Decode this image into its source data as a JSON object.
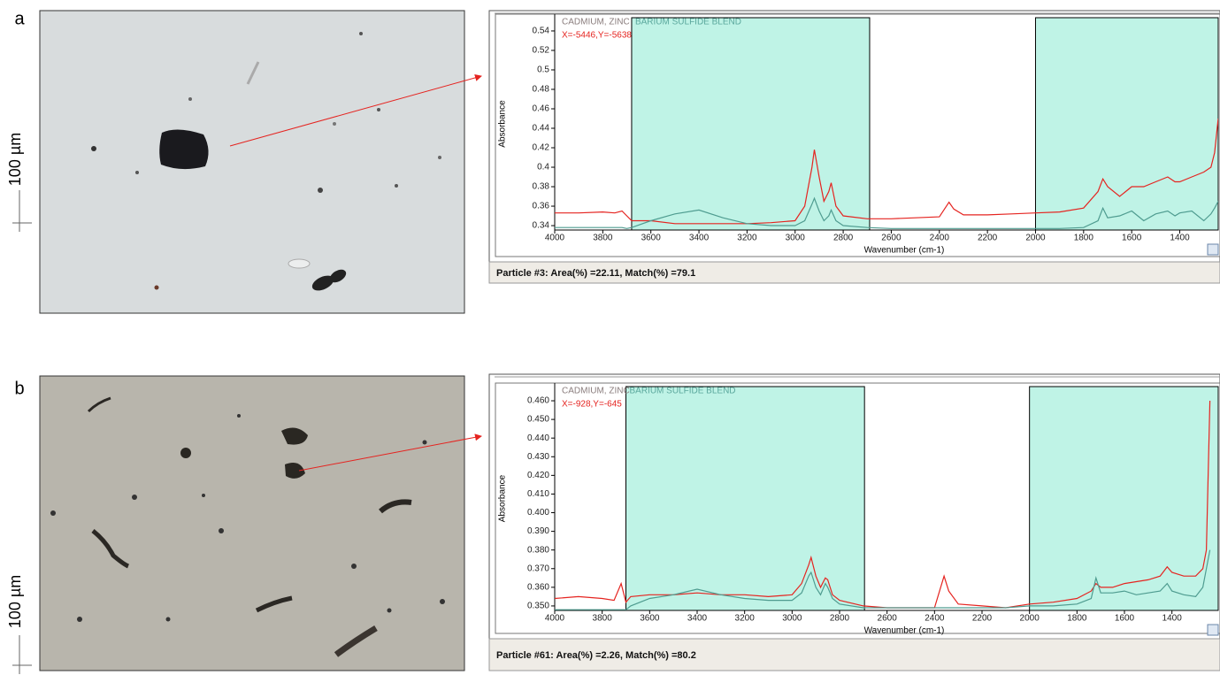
{
  "chart_data": [
    {
      "type": "line",
      "panel_label": "a",
      "scale_label": "100 µm",
      "library_match": [
        "CADMIUM, ZINC",
        "BARIUM SULFIDE BLEND"
      ],
      "annotation": "X=-5446,Y=-5638",
      "y_label": "Absorbance",
      "x_label": "Wavenumber (cm-1)",
      "footer": "Particle #3: Area(%) =22.11, Match(%) =79.1",
      "xlim": [
        4000,
        1240
      ],
      "ylim": [
        0.3355,
        0.5536
      ],
      "xticks": [
        4000,
        3800,
        3600,
        3400,
        3200,
        3000,
        2800,
        2600,
        2400,
        2200,
        2000,
        1800,
        1600,
        1400
      ],
      "yticks": [
        0.34,
        0.36,
        0.38,
        0.4,
        0.42,
        0.44,
        0.46,
        0.48,
        0.5,
        0.52,
        0.54
      ],
      "shaded_regions": [
        [
          3680,
          2690
        ],
        [
          2000,
          1240
        ]
      ],
      "shade_color": "#bff3e6",
      "x": [
        4000,
        3900,
        3800,
        3750,
        3720,
        3700,
        3680,
        3600,
        3500,
        3400,
        3300,
        3200,
        3100,
        3000,
        2960,
        2930,
        2920,
        2900,
        2880,
        2860,
        2850,
        2830,
        2800,
        2700,
        2600,
        2500,
        2400,
        2360,
        2340,
        2300,
        2200,
        2100,
        2000,
        1900,
        1800,
        1740,
        1720,
        1700,
        1650,
        1600,
        1550,
        1500,
        1450,
        1420,
        1400,
        1350,
        1300,
        1270,
        1255,
        1240
      ],
      "series": [
        {
          "color": "#e52420",
          "values": [
            0.353,
            0.353,
            0.354,
            0.353,
            0.355,
            0.35,
            0.345,
            0.345,
            0.342,
            0.342,
            0.342,
            0.342,
            0.343,
            0.345,
            0.36,
            0.4,
            0.418,
            0.39,
            0.365,
            0.375,
            0.384,
            0.36,
            0.35,
            0.347,
            0.347,
            0.348,
            0.349,
            0.364,
            0.357,
            0.351,
            0.351,
            0.352,
            0.353,
            0.354,
            0.358,
            0.375,
            0.388,
            0.38,
            0.37,
            0.38,
            0.38,
            0.385,
            0.39,
            0.385,
            0.385,
            0.39,
            0.395,
            0.4,
            0.415,
            0.45
          ]
        },
        {
          "color": "#4f9c90",
          "values": [
            0.338,
            0.338,
            0.338,
            0.338,
            0.338,
            0.337,
            0.338,
            0.345,
            0.352,
            0.356,
            0.348,
            0.342,
            0.34,
            0.34,
            0.345,
            0.362,
            0.368,
            0.355,
            0.345,
            0.35,
            0.356,
            0.345,
            0.34,
            0.338,
            0.337,
            0.337,
            0.337,
            0.337,
            0.337,
            0.337,
            0.337,
            0.337,
            0.337,
            0.337,
            0.338,
            0.345,
            0.358,
            0.348,
            0.35,
            0.355,
            0.345,
            0.352,
            0.355,
            0.35,
            0.353,
            0.355,
            0.345,
            0.352,
            0.358,
            0.365
          ]
        }
      ]
    },
    {
      "type": "line",
      "panel_label": "b",
      "scale_label": "100 µm",
      "library_match": [
        "CADMIUM, ZINC",
        "BARIUM SULFIDE BLEND"
      ],
      "annotation": "X=-928,Y=-645",
      "y_label": "Absorbance",
      "x_label": "Wavenumber (cm-1)",
      "footer": "Particle #61: Area(%) =2.26, Match(%) =80.2",
      "xlim": [
        4000,
        1205
      ],
      "ylim": [
        0.3476,
        0.4676
      ],
      "xticks": [
        4000,
        3800,
        3600,
        3400,
        3200,
        3000,
        2800,
        2600,
        2400,
        2200,
        2000,
        1800,
        1600,
        1400
      ],
      "yticks": [
        {
          "value": 0.35,
          "label": "0.350"
        },
        {
          "value": 0.36,
          "label": "0.360"
        },
        {
          "value": 0.37,
          "label": "0.370"
        },
        {
          "value": 0.38,
          "label": "0.380"
        },
        {
          "value": 0.39,
          "label": "0.390"
        },
        {
          "value": 0.4,
          "label": "0.400"
        },
        {
          "value": 0.41,
          "label": "0.410"
        },
        {
          "value": 0.42,
          "label": "0.420"
        },
        {
          "value": 0.43,
          "label": "0.430"
        },
        {
          "value": 0.44,
          "label": "0.440"
        },
        {
          "value": 0.45,
          "label": "0.450"
        },
        {
          "value": 0.46,
          "label": "0.460"
        }
      ],
      "shaded_regions": [
        [
          3700,
          2695
        ],
        [
          2000,
          1205
        ]
      ],
      "shade_color": "#bff3e6",
      "x": [
        4000,
        3900,
        3800,
        3750,
        3720,
        3700,
        3680,
        3600,
        3500,
        3400,
        3300,
        3200,
        3100,
        3000,
        2960,
        2930,
        2920,
        2900,
        2880,
        2860,
        2850,
        2830,
        2800,
        2700,
        2600,
        2500,
        2400,
        2360,
        2340,
        2300,
        2200,
        2100,
        2000,
        1900,
        1800,
        1740,
        1720,
        1700,
        1650,
        1600,
        1550,
        1500,
        1450,
        1420,
        1400,
        1350,
        1300,
        1270,
        1255,
        1240
      ],
      "series": [
        {
          "color": "#e52420",
          "values": [
            0.354,
            0.355,
            0.354,
            0.353,
            0.362,
            0.352,
            0.355,
            0.356,
            0.356,
            0.357,
            0.356,
            0.356,
            0.355,
            0.356,
            0.362,
            0.372,
            0.376,
            0.366,
            0.36,
            0.365,
            0.364,
            0.356,
            0.353,
            0.35,
            0.349,
            0.349,
            0.349,
            0.366,
            0.358,
            0.351,
            0.35,
            0.349,
            0.351,
            0.352,
            0.354,
            0.358,
            0.362,
            0.36,
            0.36,
            0.362,
            0.363,
            0.364,
            0.366,
            0.371,
            0.368,
            0.366,
            0.366,
            0.37,
            0.38,
            0.46
          ]
        },
        {
          "color": "#4f9c90",
          "values": [
            0.348,
            0.348,
            0.348,
            0.348,
            0.348,
            0.348,
            0.35,
            0.354,
            0.356,
            0.359,
            0.356,
            0.354,
            0.353,
            0.353,
            0.357,
            0.366,
            0.368,
            0.36,
            0.356,
            0.362,
            0.36,
            0.354,
            0.351,
            0.349,
            0.349,
            0.349,
            0.349,
            0.349,
            0.349,
            0.349,
            0.349,
            0.349,
            0.35,
            0.35,
            0.351,
            0.354,
            0.365,
            0.357,
            0.357,
            0.358,
            0.356,
            0.357,
            0.358,
            0.362,
            0.358,
            0.356,
            0.355,
            0.36,
            0.37,
            0.38
          ]
        }
      ]
    }
  ]
}
